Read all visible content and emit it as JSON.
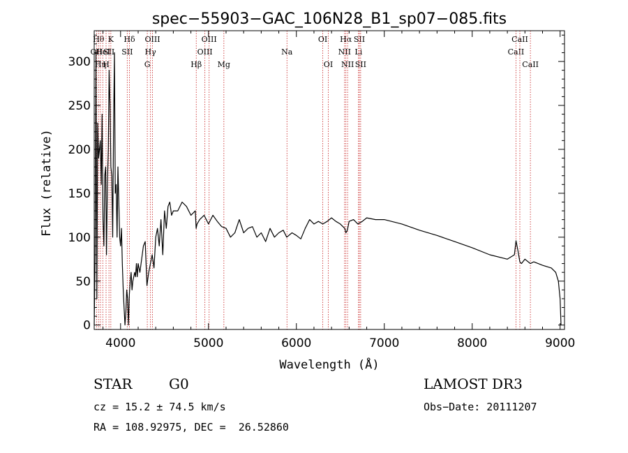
{
  "chart_data": {
    "type": "line",
    "title": "spec−55903−GAC_106N28_B1_sp07−085.fits",
    "xlabel": "Wavelength (Å)",
    "ylabel": "Flux (relative)",
    "xlim": [
      3700,
      9050
    ],
    "ylim": [
      -5,
      335
    ],
    "xticks": [
      4000,
      5000,
      6000,
      7000,
      8000,
      9000
    ],
    "yticks": [
      0,
      50,
      100,
      150,
      200,
      250,
      300
    ],
    "series": [
      {
        "name": "flux",
        "x": [
          3700,
          3710,
          3720,
          3730,
          3740,
          3750,
          3760,
          3770,
          3780,
          3790,
          3800,
          3810,
          3820,
          3830,
          3840,
          3850,
          3860,
          3870,
          3880,
          3890,
          3900,
          3910,
          3920,
          3930,
          3940,
          3950,
          3960,
          3970,
          3980,
          3990,
          4000,
          4010,
          4020,
          4030,
          4040,
          4050,
          4060,
          4070,
          4080,
          4090,
          4100,
          4110,
          4120,
          4130,
          4140,
          4150,
          4160,
          4170,
          4180,
          4190,
          4200,
          4220,
          4240,
          4260,
          4280,
          4300,
          4320,
          4340,
          4360,
          4380,
          4400,
          4420,
          4440,
          4460,
          4480,
          4500,
          4520,
          4540,
          4560,
          4580,
          4600,
          4650,
          4700,
          4750,
          4800,
          4850,
          4860,
          4870,
          4900,
          4950,
          5000,
          5050,
          5100,
          5150,
          5200,
          5250,
          5300,
          5350,
          5400,
          5450,
          5500,
          5550,
          5600,
          5650,
          5700,
          5750,
          5800,
          5850,
          5890,
          5950,
          6000,
          6050,
          6100,
          6150,
          6200,
          6250,
          6300,
          6350,
          6400,
          6450,
          6500,
          6550,
          6563,
          6580,
          6600,
          6650,
          6700,
          6750,
          6800,
          6900,
          7000,
          7200,
          7400,
          7600,
          7800,
          8000,
          8200,
          8400,
          8480,
          8498,
          8520,
          8542,
          8560,
          8600,
          8662,
          8700,
          8800,
          8900,
          8950,
          8980,
          9000,
          9010
        ],
        "values": [
          0,
          75,
          310,
          30,
          230,
          190,
          200,
          210,
          160,
          240,
          120,
          90,
          170,
          180,
          80,
          160,
          200,
          290,
          250,
          180,
          170,
          100,
          220,
          310,
          150,
          160,
          100,
          180,
          140,
          100,
          90,
          110,
          70,
          40,
          20,
          0,
          15,
          40,
          30,
          0,
          35,
          50,
          60,
          40,
          50,
          55,
          60,
          55,
          70,
          55,
          70,
          60,
          75,
          90,
          95,
          45,
          60,
          70,
          80,
          65,
          100,
          110,
          90,
          120,
          80,
          130,
          110,
          135,
          140,
          125,
          130,
          130,
          140,
          135,
          125,
          130,
          110,
          115,
          120,
          125,
          115,
          125,
          118,
          112,
          110,
          100,
          105,
          120,
          105,
          110,
          112,
          100,
          105,
          95,
          110,
          100,
          105,
          108,
          100,
          105,
          102,
          98,
          110,
          120,
          115,
          118,
          115,
          118,
          122,
          118,
          115,
          110,
          105,
          108,
          118,
          120,
          115,
          118,
          122,
          120,
          120,
          115,
          108,
          102,
          95,
          88,
          80,
          75,
          80,
          96,
          85,
          72,
          70,
          75,
          70,
          72,
          68,
          65,
          60,
          50,
          30,
          0
        ]
      }
    ],
    "line_markers": [
      {
        "x": 3727,
        "row": 1,
        "label": "OII"
      },
      {
        "x": 3750,
        "row": 0,
        "label": "Hθ"
      },
      {
        "x": 3771,
        "row": 2,
        "label": "Hη"
      },
      {
        "x": 3798,
        "row": 1,
        "label": "HeI"
      },
      {
        "x": 3835,
        "row": 2,
        "label": "H"
      },
      {
        "x": 3868,
        "row": 1,
        "label": "SII"
      },
      {
        "x": 3889,
        "row": 0,
        "label": "K"
      },
      {
        "x": 4101,
        "row": 0,
        "label": "Hδ"
      },
      {
        "x": 4076,
        "row": 1,
        "label": "SII"
      },
      {
        "x": 4304,
        "row": 2,
        "label": "G"
      },
      {
        "x": 4340,
        "row": 1,
        "label": "Hγ"
      },
      {
        "x": 4363,
        "row": 0,
        "label": "OIII"
      },
      {
        "x": 4861,
        "row": 2,
        "label": "Hβ"
      },
      {
        "x": 4959,
        "row": 1,
        "label": "OIII"
      },
      {
        "x": 5007,
        "row": 0,
        "label": "OIII"
      },
      {
        "x": 5175,
        "row": 2,
        "label": "Mg"
      },
      {
        "x": 5893,
        "row": 1,
        "label": "Na"
      },
      {
        "x": 6300,
        "row": 0,
        "label": "OI"
      },
      {
        "x": 6363,
        "row": 2,
        "label": "OI"
      },
      {
        "x": 6548,
        "row": 1,
        "label": "NII"
      },
      {
        "x": 6563,
        "row": 0,
        "label": "Hα"
      },
      {
        "x": 6583,
        "row": 2,
        "label": "NII"
      },
      {
        "x": 6707,
        "row": 1,
        "label": "Li"
      },
      {
        "x": 6716,
        "row": 0,
        "label": "SII"
      },
      {
        "x": 6731,
        "row": 2,
        "label": "SII"
      },
      {
        "x": 8498,
        "row": 1,
        "label": "CaII"
      },
      {
        "x": 8542,
        "row": 0,
        "label": "CaII"
      },
      {
        "x": 8662,
        "row": 2,
        "label": "CaII"
      }
    ]
  },
  "info": {
    "object_type": "STAR",
    "subclass": "G0",
    "survey": "LAMOST DR3",
    "cz": "cz = 15.2 ± 74.5 km/s",
    "obs_date": "Obs−Date: 20111207",
    "radec": "RA = 108.92975, DEC =  26.52860"
  },
  "colors": {
    "line_marker": "#cc3333",
    "spectrum": "#000000"
  }
}
